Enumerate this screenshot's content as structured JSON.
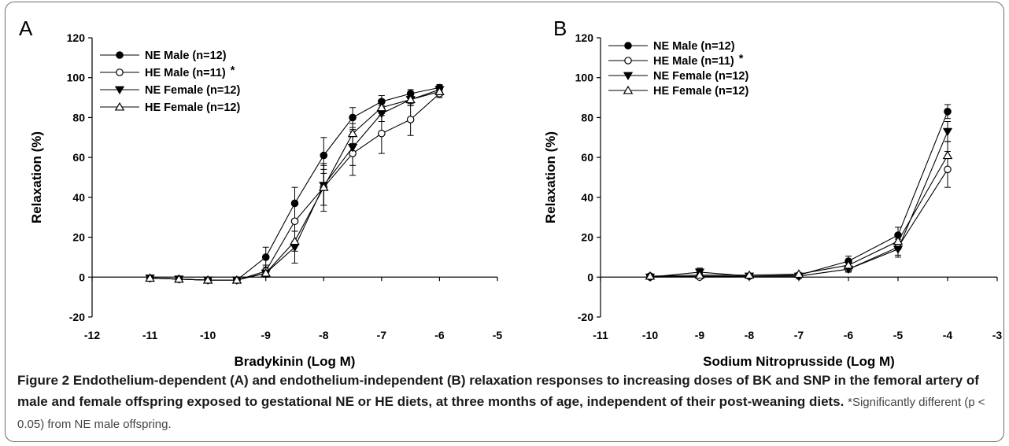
{
  "caption": {
    "lead": "Figure 2 Endothelium-dependent (A) and endothelium-independent (B) relaxation responses to increasing doses of BK and SNP in the femoral artery of male and female offspring exposed to gestational NE or HE diets, at three months of age, independent of their post-weaning diets.",
    "note": "*Significantly different (p < 0.05) from NE male offspring."
  },
  "colors": {
    "line": "#000000",
    "frame": "#6e6e6e"
  },
  "chart_data": [
    {
      "panel": "A",
      "type": "line",
      "xlabel": "Bradykinin (Log M)",
      "ylabel": "Relaxation (%)",
      "xlim": [
        -12,
        -5
      ],
      "ylim": [
        -20,
        120
      ],
      "xticks": [
        -12,
        -11,
        -10,
        -9,
        -8,
        -7,
        -6,
        -5
      ],
      "yticks": [
        -20,
        0,
        20,
        40,
        60,
        80,
        100,
        120
      ],
      "grid": false,
      "legend_position": "top-left",
      "x": [
        -11,
        -10.5,
        -10,
        -9.5,
        -9,
        -8.5,
        -8,
        -7.5,
        -7,
        -6.5,
        -6
      ],
      "series": [
        {
          "name": "NE Male (n=12)",
          "marker": "circle-filled",
          "significance": "",
          "values": [
            -0.5,
            -1,
            -1.5,
            -1.5,
            10,
            37,
            61,
            80,
            88,
            92,
            95
          ],
          "errors": [
            0.5,
            0.5,
            0.5,
            0.5,
            5,
            8,
            9,
            5,
            3,
            2,
            1.5
          ]
        },
        {
          "name": "HE Male (n=11)",
          "marker": "circle-open",
          "significance": "*",
          "values": [
            -0.5,
            -1,
            -1.5,
            -1.5,
            3,
            28,
            45,
            62,
            72,
            79,
            92
          ],
          "errors": [
            0.5,
            0.5,
            0.5,
            0.5,
            3,
            10,
            12,
            11,
            10,
            8,
            2
          ]
        },
        {
          "name": "NE Female (n=12)",
          "marker": "triangle-down-filled",
          "significance": "",
          "values": [
            -0.5,
            -1,
            -1.5,
            -1.5,
            2,
            15,
            46,
            65,
            82,
            89,
            94
          ],
          "errors": [
            0.5,
            0.5,
            0.5,
            0.5,
            2,
            8,
            10,
            9,
            4,
            3,
            2
          ]
        },
        {
          "name": "HE Female (n=12)",
          "marker": "triangle-up-open",
          "significance": "",
          "values": [
            -0.5,
            -1,
            -1.5,
            -1.5,
            2,
            18,
            45,
            72,
            85,
            89,
            93
          ],
          "errors": [
            0.5,
            0.5,
            0.5,
            0.5,
            2,
            5,
            9,
            5,
            4,
            3,
            2
          ]
        }
      ]
    },
    {
      "panel": "B",
      "type": "line",
      "xlabel": "Sodium Nitroprusside (Log M)",
      "ylabel": "Relaxation (%)",
      "xlim": [
        -11,
        -3
      ],
      "ylim": [
        -20,
        120
      ],
      "xticks": [
        -11,
        -10,
        -9,
        -8,
        -7,
        -6,
        -5,
        -4,
        -3
      ],
      "yticks": [
        -20,
        0,
        20,
        40,
        60,
        80,
        100,
        120
      ],
      "grid": false,
      "legend_position": "top-left",
      "x": [
        -10,
        -9,
        -8,
        -7,
        -6,
        -5,
        -4
      ],
      "series": [
        {
          "name": "NE Male (n=12)",
          "marker": "circle-filled",
          "significance": "",
          "values": [
            0,
            0.5,
            0.5,
            1,
            8,
            21,
            83
          ],
          "errors": [
            0.5,
            1,
            0.5,
            0.5,
            2.5,
            4,
            3.5
          ]
        },
        {
          "name": "HE Male (n=11)",
          "marker": "circle-open",
          "significance": "*",
          "values": [
            0.5,
            0,
            0.5,
            0.5,
            4,
            15,
            54
          ],
          "errors": [
            0.5,
            0.5,
            0.5,
            0.5,
            1.5,
            4,
            9
          ]
        },
        {
          "name": "NE Female (n=12)",
          "marker": "triangle-down-filled",
          "significance": "",
          "values": [
            0,
            2.5,
            0.5,
            0.5,
            4,
            14,
            73
          ],
          "errors": [
            0.5,
            2,
            0.5,
            0.5,
            1.5,
            4,
            5
          ]
        },
        {
          "name": "HE Female (n=12)",
          "marker": "triangle-up-open",
          "significance": "",
          "values": [
            0.5,
            1,
            1,
            1.5,
            6,
            18,
            61
          ],
          "errors": [
            0.5,
            1,
            0.5,
            0.5,
            2,
            4,
            7
          ]
        }
      ]
    }
  ]
}
